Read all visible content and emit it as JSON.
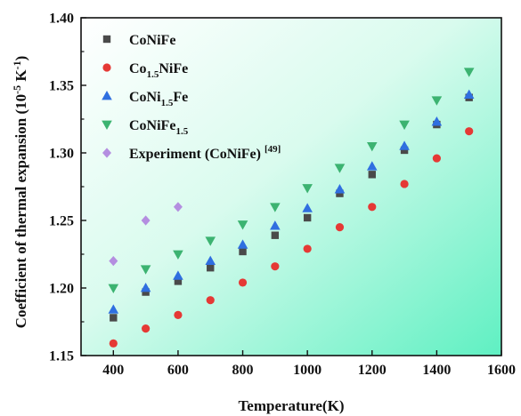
{
  "chart_data": {
    "type": "scatter",
    "xlabel": "Temperature(K)",
    "ylabel": {
      "base": "Coefficient of thermal expansion (10",
      "sup1": "-5",
      "mid": " K",
      "sup2": "-1",
      "end": ")"
    },
    "xlim": [
      300,
      1600
    ],
    "ylim": [
      1.15,
      1.4
    ],
    "x_ticks": [
      "400",
      "600",
      "800",
      "1000",
      "1200",
      "1400",
      "1600"
    ],
    "y_ticks": [
      "1.15",
      "1.20",
      "1.25",
      "1.30",
      "1.35",
      "1.40"
    ],
    "legend_position": "top-left",
    "background": "gradient white (top-left) to aquamarine (bottom-right)",
    "series": [
      {
        "name": "CoNiFe",
        "name_parts": [
          {
            "t": "CoNiFe",
            "sub": false
          }
        ],
        "marker": "square",
        "color": "#4a4a4a",
        "x": [
          400,
          500,
          600,
          700,
          800,
          900,
          1000,
          1100,
          1200,
          1300,
          1400,
          1500
        ],
        "values": [
          1.178,
          1.197,
          1.205,
          1.215,
          1.227,
          1.239,
          1.252,
          1.27,
          1.284,
          1.302,
          1.321,
          1.341
        ]
      },
      {
        "name": "Co1.5NiFe",
        "name_parts": [
          {
            "t": "Co",
            "sub": false
          },
          {
            "t": "1.5",
            "sub": true
          },
          {
            "t": "NiFe",
            "sub": false
          }
        ],
        "marker": "circle",
        "color": "#e53935",
        "x": [
          400,
          500,
          600,
          700,
          800,
          900,
          1000,
          1100,
          1200,
          1300,
          1400,
          1500
        ],
        "values": [
          1.159,
          1.17,
          1.18,
          1.191,
          1.204,
          1.216,
          1.229,
          1.245,
          1.26,
          1.277,
          1.296,
          1.316
        ]
      },
      {
        "name": "CoNi1.5Fe",
        "name_parts": [
          {
            "t": "CoNi",
            "sub": false
          },
          {
            "t": "1.5",
            "sub": true
          },
          {
            "t": "Fe",
            "sub": false
          }
        ],
        "marker": "triangle-up",
        "color": "#2f6fe0",
        "x": [
          400,
          500,
          600,
          700,
          800,
          900,
          1000,
          1100,
          1200,
          1300,
          1400,
          1500
        ],
        "values": [
          1.184,
          1.2,
          1.209,
          1.22,
          1.232,
          1.246,
          1.259,
          1.273,
          1.29,
          1.305,
          1.323,
          1.343
        ]
      },
      {
        "name": "CoNiFe1.5",
        "name_parts": [
          {
            "t": "CoNiFe",
            "sub": false
          },
          {
            "t": "1.5",
            "sub": true
          }
        ],
        "marker": "triangle-down",
        "color": "#3cb371",
        "x": [
          400,
          500,
          600,
          700,
          800,
          900,
          1000,
          1100,
          1200,
          1300,
          1400,
          1500
        ],
        "values": [
          1.2,
          1.214,
          1.225,
          1.235,
          1.247,
          1.26,
          1.274,
          1.289,
          1.305,
          1.321,
          1.339,
          1.36
        ]
      },
      {
        "name": "Experiment (CoNiFe) [49]",
        "name_parts": [
          {
            "t": "Experiment (CoNiFe) ",
            "sub": false
          },
          {
            "t": "[49]",
            "sup": true
          }
        ],
        "marker": "diamond",
        "color": "#b48ee0",
        "x": [
          400,
          500,
          600
        ],
        "values": [
          1.22,
          1.25,
          1.26
        ]
      }
    ]
  }
}
